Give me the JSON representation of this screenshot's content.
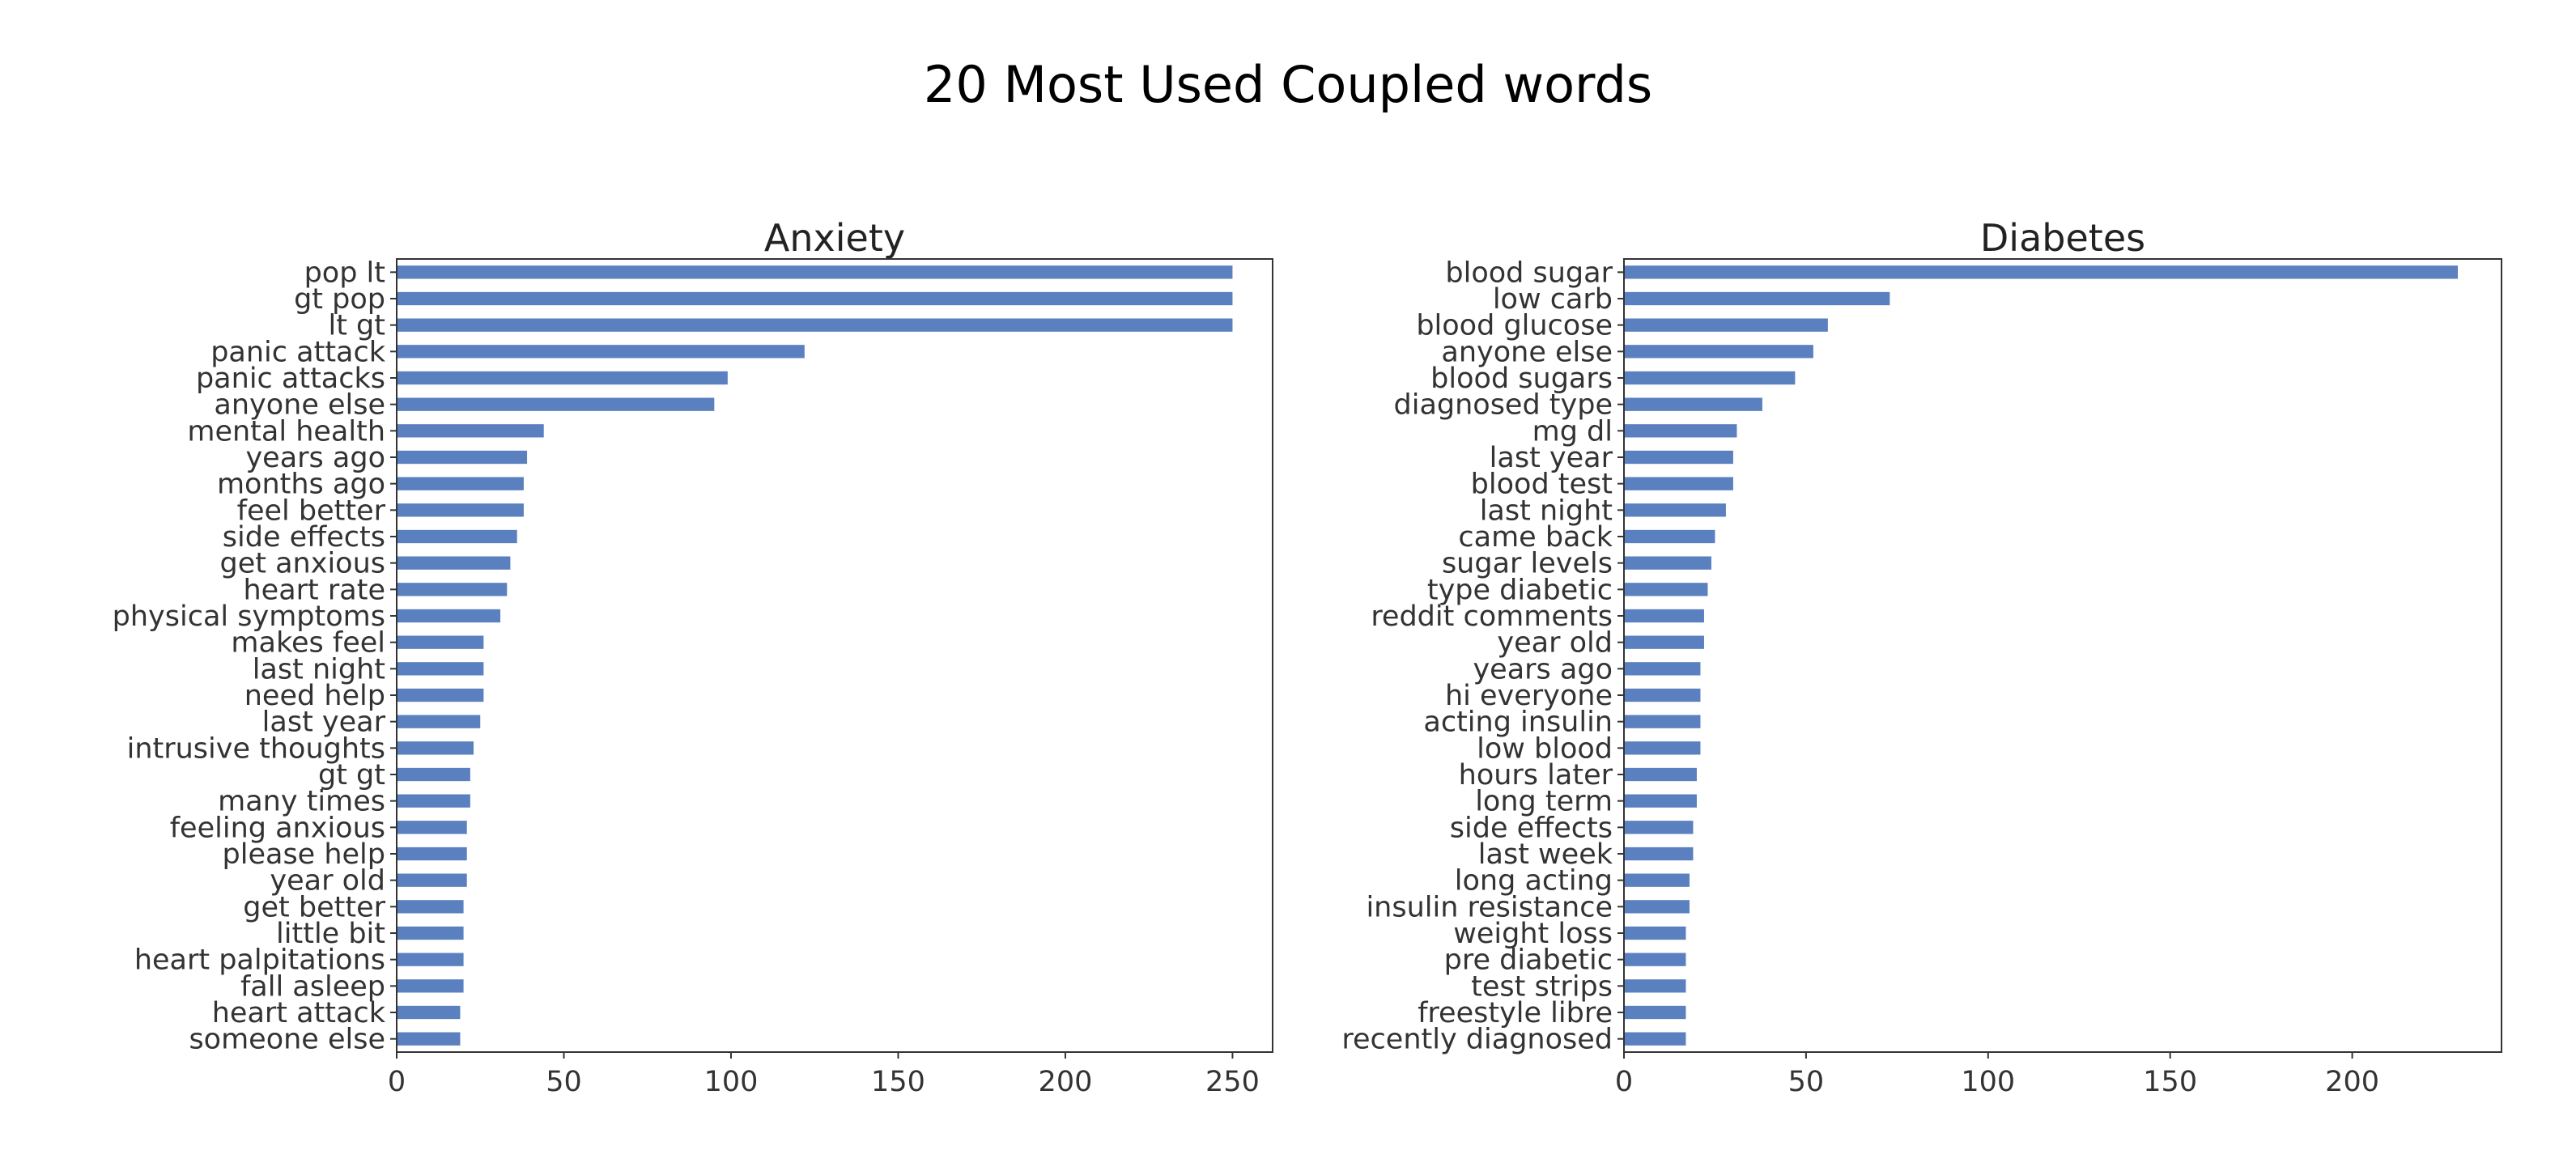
{
  "suptitle": "20 Most Used Coupled words",
  "colors": {
    "bar": "#5b80c0",
    "axis": "#333333",
    "background": "#ffffff"
  },
  "chart_data": [
    {
      "type": "bar",
      "orientation": "horizontal",
      "title": "Anxiety",
      "xlabel": "",
      "ylabel": "",
      "xlim": [
        0,
        262
      ],
      "xticks": [
        0,
        50,
        100,
        150,
        200,
        250
      ],
      "grid": false,
      "categories": [
        "pop lt",
        "gt pop",
        "lt gt",
        "panic attack",
        "panic attacks",
        "anyone else",
        "mental health",
        "years ago",
        "months ago",
        "feel better",
        "side effects",
        "get anxious",
        "heart rate",
        "physical symptoms",
        "makes feel",
        "last night",
        "need help",
        "last year",
        "intrusive thoughts",
        "gt gt",
        "many times",
        "feeling anxious",
        "please help",
        "year old",
        "get better",
        "little bit",
        "heart palpitations",
        "fall asleep",
        "heart attack",
        "someone else"
      ],
      "values": [
        250,
        250,
        250,
        122,
        99,
        95,
        44,
        39,
        38,
        38,
        36,
        34,
        33,
        31,
        26,
        26,
        26,
        25,
        23,
        22,
        22,
        21,
        21,
        21,
        20,
        20,
        20,
        20,
        19,
        19
      ]
    },
    {
      "type": "bar",
      "orientation": "horizontal",
      "title": "Diabetes",
      "xlabel": "",
      "ylabel": "",
      "xlim": [
        0,
        241
      ],
      "xticks": [
        0,
        50,
        100,
        150,
        200
      ],
      "grid": false,
      "categories": [
        "blood sugar",
        "low carb",
        "blood glucose",
        "anyone else",
        "blood sugars",
        "diagnosed type",
        "mg dl",
        "last year",
        "blood test",
        "last night",
        "came back",
        "sugar levels",
        "type diabetic",
        "reddit comments",
        "year old",
        "years ago",
        "hi everyone",
        "acting insulin",
        "low blood",
        "hours later",
        "long term",
        "side effects",
        "last week",
        "long acting",
        "insulin resistance",
        "weight loss",
        "pre diabetic",
        "test strips",
        "freestyle libre",
        "recently diagnosed"
      ],
      "values": [
        229,
        73,
        56,
        52,
        47,
        38,
        31,
        30,
        30,
        28,
        25,
        24,
        23,
        22,
        22,
        21,
        21,
        21,
        21,
        20,
        20,
        19,
        19,
        18,
        18,
        17,
        17,
        17,
        17,
        17
      ]
    }
  ]
}
